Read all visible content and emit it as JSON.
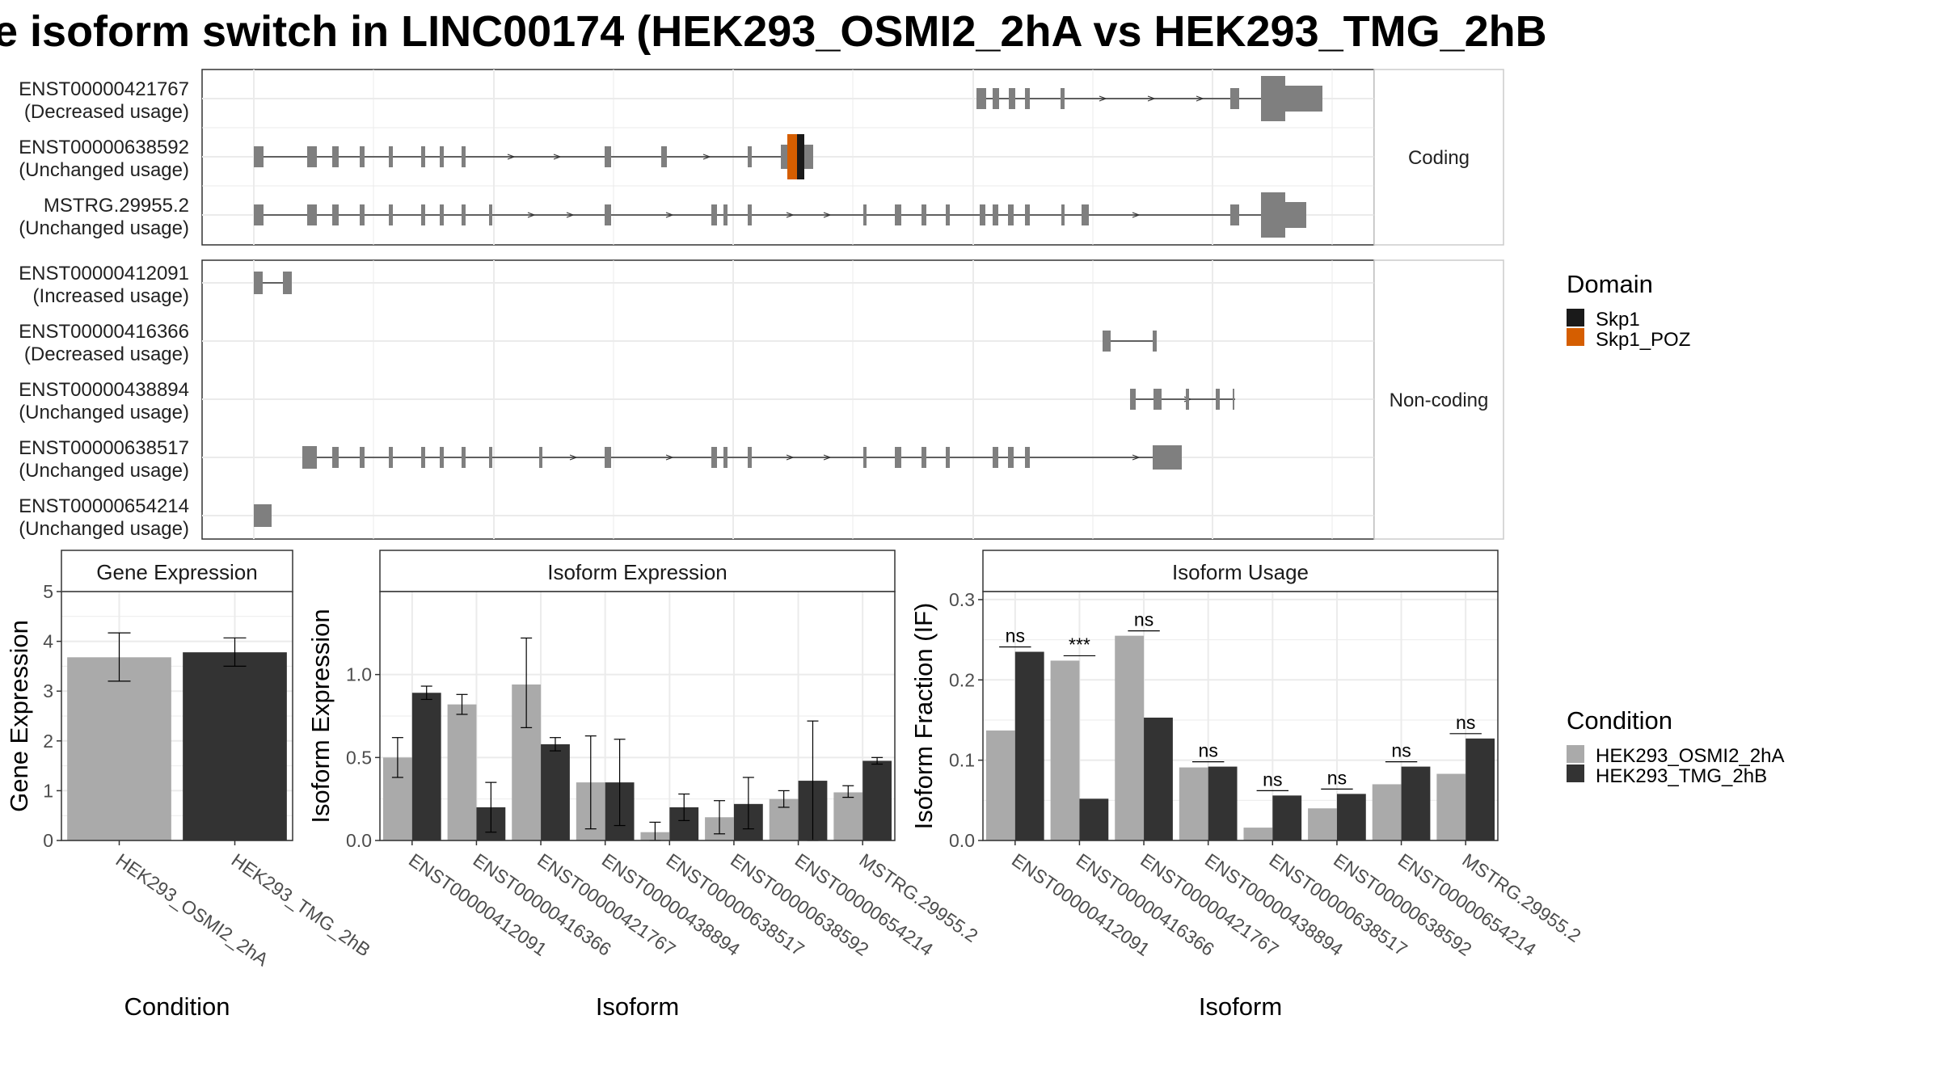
{
  "title": "e isoform switch in LINC00174 (HEK293_OSMI2_2hA vs HEK293_TMG_2hB",
  "colors": {
    "exon": "#7f7f7f",
    "cond_a": "#aaaaaa",
    "cond_b": "#333333",
    "skp1": "#1a1a1a",
    "skp1_poz": "#d55e00",
    "grid": "#ebebeb",
    "strip_bg": "#ffffff"
  },
  "transcript_panel": {
    "coding_label": "Coding",
    "noncoding_label": "Non-coding",
    "coding": [
      {
        "id": "ENST00000421767",
        "usage": "(Decreased usage)"
      },
      {
        "id": "ENST00000638592",
        "usage": "(Unchanged usage)"
      },
      {
        "id": "MSTRG.29955.2",
        "usage": "(Unchanged usage)"
      }
    ],
    "noncoding": [
      {
        "id": "ENST00000412091",
        "usage": "(Increased usage)"
      },
      {
        "id": "ENST00000416366",
        "usage": "(Decreased usage)"
      },
      {
        "id": "ENST00000438894",
        "usage": "(Unchanged usage)"
      },
      {
        "id": "ENST00000638517",
        "usage": "(Unchanged usage)"
      },
      {
        "id": "ENST00000654214",
        "usage": "(Unchanged usage)"
      }
    ]
  },
  "domain_legend": {
    "title": "Domain",
    "items": [
      {
        "label": "Skp1",
        "color": "#1a1a1a"
      },
      {
        "label": "Skp1_POZ",
        "color": "#d55e00"
      }
    ]
  },
  "condition_legend": {
    "title": "Condition",
    "items": [
      {
        "label": "HEK293_OSMI2_2hA",
        "color": "#aaaaaa"
      },
      {
        "label": "HEK293_TMG_2hB",
        "color": "#333333"
      }
    ]
  },
  "chart_data": [
    {
      "type": "bar",
      "title": "Gene Expression",
      "xlabel": "Condition",
      "ylabel": "Gene Expression",
      "ylim": [
        0,
        5
      ],
      "yticks": [
        "0",
        "1",
        "2",
        "3",
        "4",
        "5"
      ],
      "categories": [
        "HEK293_OSMI2_2hA",
        "HEK293_TMG_2hB"
      ],
      "values": [
        3.68,
        3.78
      ],
      "errors_low": [
        3.2,
        3.5
      ],
      "errors_high": [
        4.17,
        4.07
      ],
      "colors": [
        "#aaaaaa",
        "#333333"
      ]
    },
    {
      "type": "bar",
      "title": "Isoform Expression",
      "xlabel": "Isoform",
      "ylabel": "Isoform Expression",
      "ylim": [
        0,
        1.5
      ],
      "yticks": [
        "0.0",
        "0.5",
        "1.0"
      ],
      "categories": [
        "ENST00000412091",
        "ENST00000416366",
        "ENST00000421767",
        "ENST00000438894",
        "ENST00000638517",
        "ENST00000638592",
        "ENST00000654214",
        "MSTRG.29955.2"
      ],
      "series": [
        {
          "name": "HEK293_OSMI2_2hA",
          "values": [
            0.5,
            0.82,
            0.94,
            0.35,
            0.05,
            0.14,
            0.25,
            0.29
          ],
          "err_low": [
            0.38,
            0.76,
            0.68,
            0.07,
            0.0,
            0.04,
            0.2,
            0.26
          ],
          "err_high": [
            0.62,
            0.88,
            1.22,
            0.63,
            0.11,
            0.24,
            0.3,
            0.33
          ]
        },
        {
          "name": "HEK293_TMG_2hB",
          "values": [
            0.89,
            0.2,
            0.58,
            0.35,
            0.2,
            0.22,
            0.36,
            0.48
          ],
          "err_low": [
            0.85,
            0.05,
            0.54,
            0.09,
            0.12,
            0.07,
            0.0,
            0.46
          ],
          "err_high": [
            0.93,
            0.35,
            0.62,
            0.61,
            0.28,
            0.38,
            0.72,
            0.5
          ]
        }
      ]
    },
    {
      "type": "bar",
      "title": "Isoform Usage",
      "xlabel": "Isoform",
      "ylabel": "Isoform Fraction (IF)",
      "ylim": [
        0,
        0.31
      ],
      "yticks": [
        "0.0",
        "0.1",
        "0.2",
        "0.3"
      ],
      "categories": [
        "ENST00000412091",
        "ENST00000416366",
        "ENST00000421767",
        "ENST00000438894",
        "ENST00000638517",
        "ENST00000638592",
        "ENST00000654214",
        "MSTRG.29955.2"
      ],
      "series": [
        {
          "name": "HEK293_OSMI2_2hA",
          "values": [
            0.137,
            0.224,
            0.255,
            0.091,
            0.016,
            0.04,
            0.07,
            0.083
          ]
        },
        {
          "name": "HEK293_TMG_2hB",
          "values": [
            0.235,
            0.052,
            0.153,
            0.092,
            0.056,
            0.058,
            0.092,
            0.127
          ]
        }
      ],
      "significance": [
        "ns",
        "***",
        "ns",
        "ns",
        "ns",
        "ns",
        "ns",
        "ns"
      ]
    }
  ]
}
